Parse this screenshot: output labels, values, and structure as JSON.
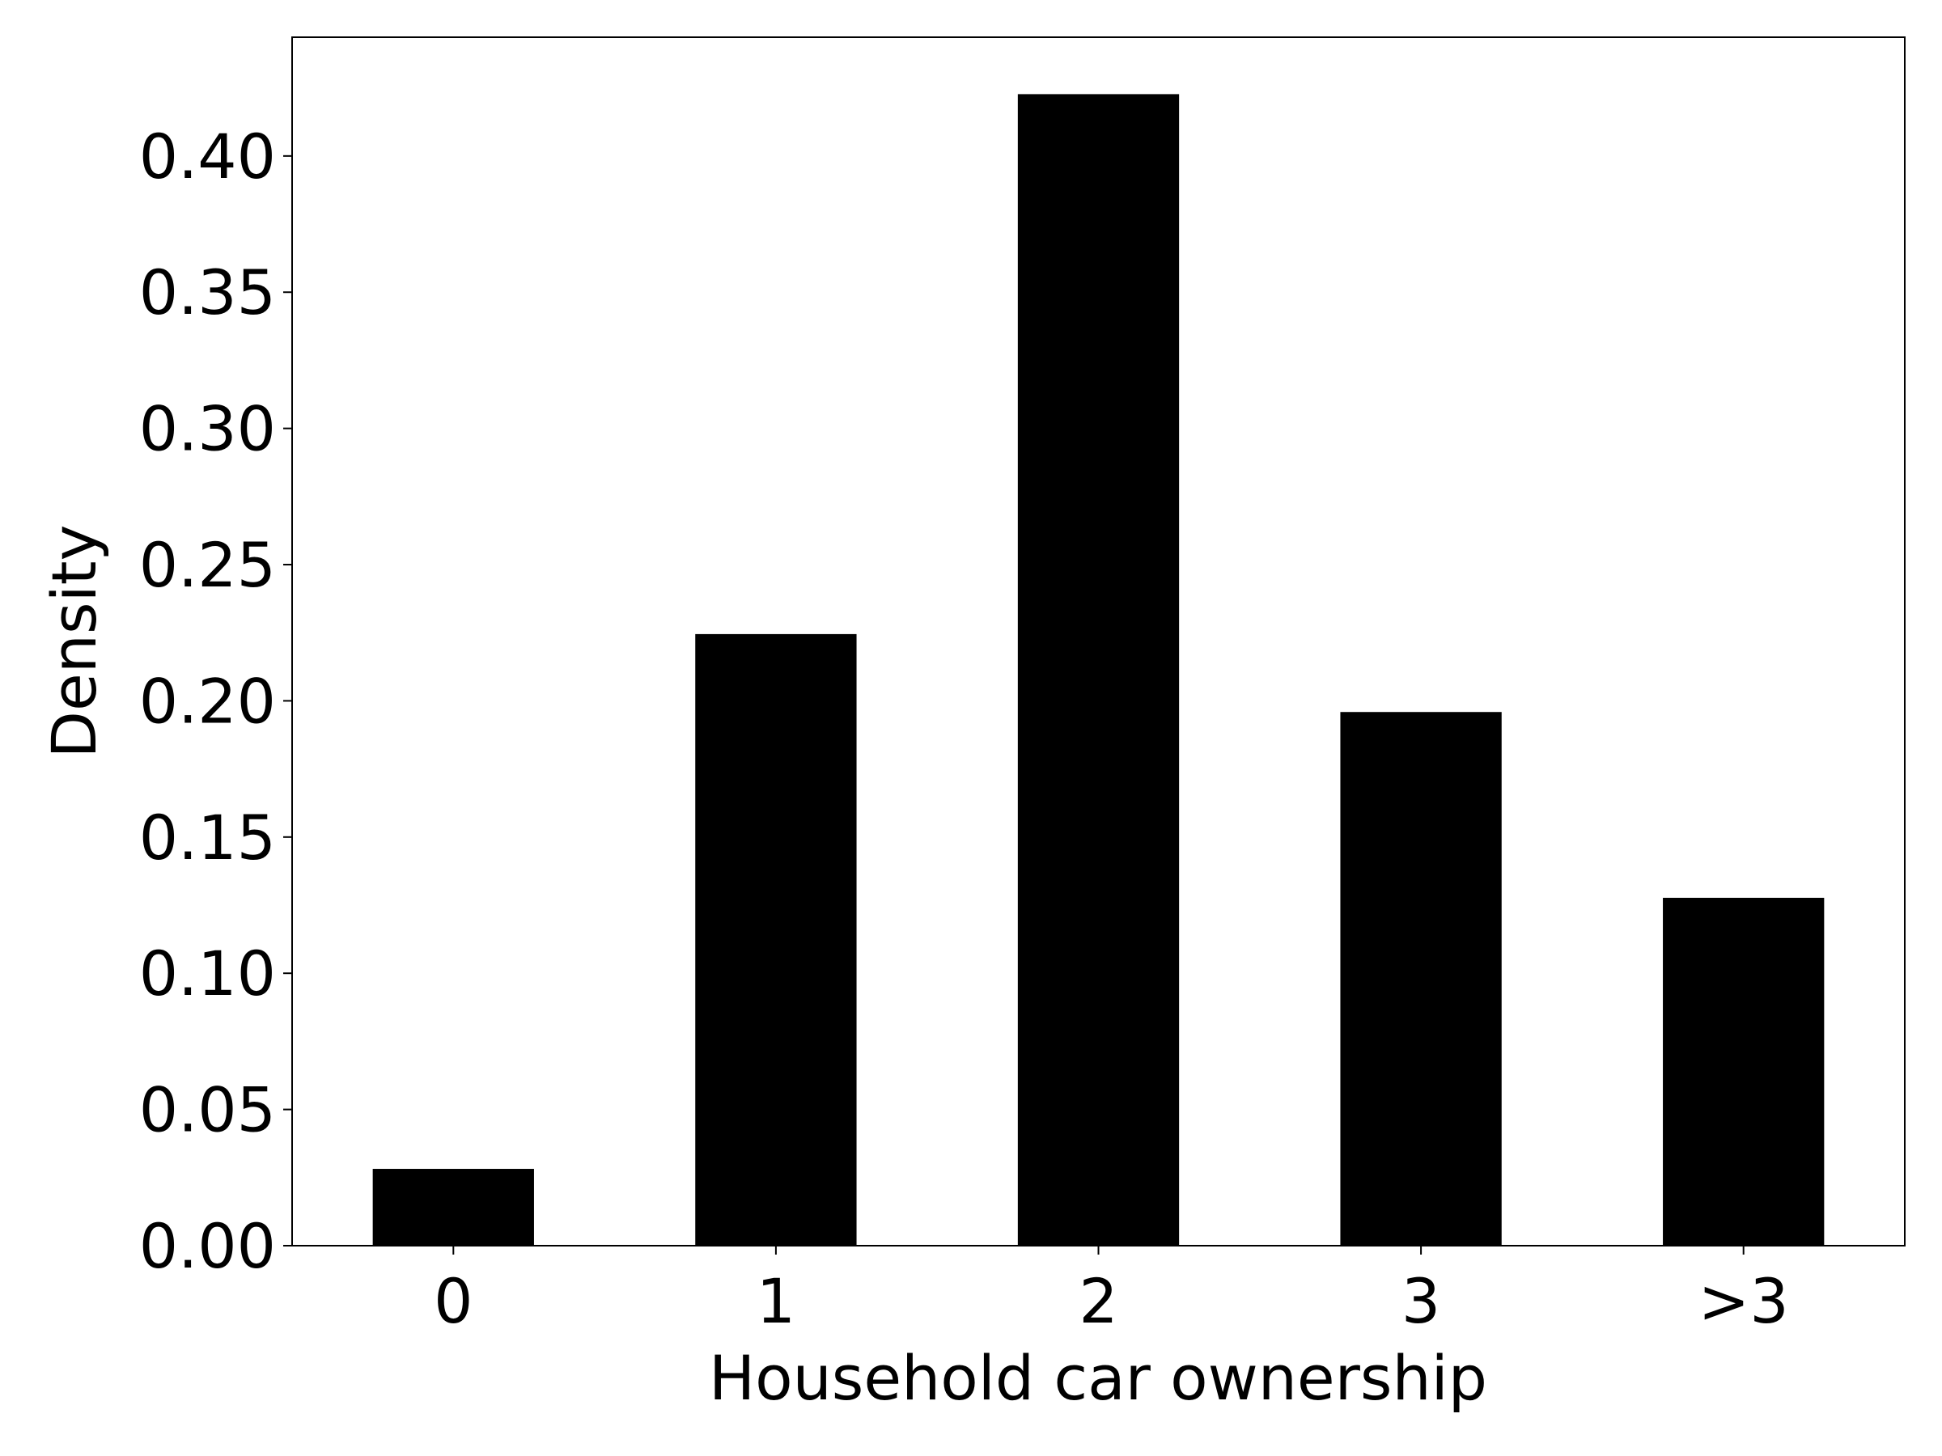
{
  "chart_data": {
    "type": "bar",
    "x_label": "Household car ownership",
    "y_label": "Density",
    "categories": [
      "0",
      "1",
      "2",
      "3",
      ">3"
    ],
    "values": [
      0.0282,
      0.2245,
      0.4227,
      0.1959,
      0.1277
    ],
    "color": "#000000",
    "ylim": [
      0,
      0.4436
    ],
    "yticks": [
      {
        "value": 0,
        "label": "0.00"
      },
      0.05,
      {
        "value": 0.1,
        "label": "0.10"
      },
      0.15,
      {
        "value": 0.2,
        "label": "0.20"
      },
      0.25,
      {
        "value": 0.3,
        "label": "0.30"
      },
      0.35,
      {
        "value": 0.4,
        "label": "0.40"
      }
    ],
    "grid": false
  }
}
